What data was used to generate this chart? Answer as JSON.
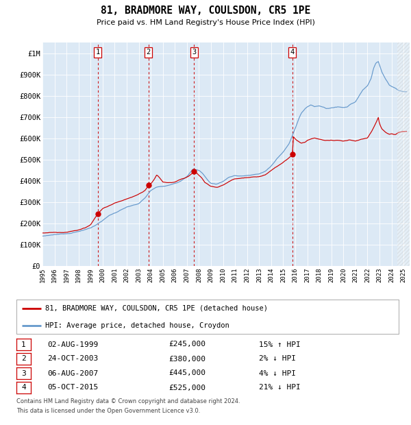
{
  "title": "81, BRADMORE WAY, COULSDON, CR5 1PE",
  "subtitle": "Price paid vs. HM Land Registry's House Price Index (HPI)",
  "footer1": "Contains HM Land Registry data © Crown copyright and database right 2024.",
  "footer2": "This data is licensed under the Open Government Licence v3.0.",
  "legend_red": "81, BRADMORE WAY, COULSDON, CR5 1PE (detached house)",
  "legend_blue": "HPI: Average price, detached house, Croydon",
  "transactions": [
    {
      "num": 1,
      "date": "02-AUG-1999",
      "price": 245000,
      "pct": "15%",
      "dir": "↑"
    },
    {
      "num": 2,
      "date": "24-OCT-2003",
      "price": 380000,
      "pct": "2%",
      "dir": "↓"
    },
    {
      "num": 3,
      "date": "06-AUG-2007",
      "price": 445000,
      "pct": "4%",
      "dir": "↓"
    },
    {
      "num": 4,
      "date": "05-OCT-2015",
      "price": 525000,
      "pct": "21%",
      "dir": "↓"
    }
  ],
  "transaction_dates_decimal": [
    1999.583,
    2003.806,
    2007.583,
    2015.756
  ],
  "transaction_prices": [
    245000,
    380000,
    445000,
    525000
  ],
  "xlim_start": 1995.0,
  "xlim_end": 2025.5,
  "ylim_min": 0,
  "ylim_max": 1050000,
  "yticks": [
    0,
    100000,
    200000,
    300000,
    400000,
    500000,
    600000,
    700000,
    800000,
    900000,
    1000000
  ],
  "ytick_labels": [
    "£0",
    "£100K",
    "£200K",
    "£300K",
    "£400K",
    "£500K",
    "£600K",
    "£700K",
    "£800K",
    "£900K",
    "£1M"
  ],
  "xticks": [
    1995,
    1996,
    1997,
    1998,
    1999,
    2000,
    2001,
    2002,
    2003,
    2004,
    2005,
    2006,
    2007,
    2008,
    2009,
    2010,
    2011,
    2012,
    2013,
    2014,
    2015,
    2016,
    2017,
    2018,
    2019,
    2020,
    2021,
    2022,
    2023,
    2024,
    2025
  ],
  "bg_color": "#dce9f5",
  "red_color": "#cc0000",
  "blue_color": "#6699cc",
  "grid_color": "#ffffff",
  "hpi_anchors": {
    "1995.0": 140000,
    "1996.0": 148000,
    "1997.0": 152000,
    "1998.0": 162000,
    "1999.0": 178000,
    "1999.5": 195000,
    "2000.0": 215000,
    "2000.5": 235000,
    "2001.0": 248000,
    "2001.5": 262000,
    "2002.0": 275000,
    "2002.5": 285000,
    "2003.0": 292000,
    "2003.5": 318000,
    "2004.0": 355000,
    "2004.5": 370000,
    "2005.0": 375000,
    "2005.5": 382000,
    "2006.0": 390000,
    "2006.5": 400000,
    "2007.0": 418000,
    "2007.5": 455000,
    "2008.0": 450000,
    "2008.3": 435000,
    "2008.7": 405000,
    "2009.0": 388000,
    "2009.5": 385000,
    "2010.0": 398000,
    "2010.5": 418000,
    "2011.0": 425000,
    "2011.5": 422000,
    "2012.0": 425000,
    "2012.5": 428000,
    "2013.0": 432000,
    "2013.5": 445000,
    "2014.0": 470000,
    "2014.5": 505000,
    "2015.0": 535000,
    "2015.5": 575000,
    "2016.0": 648000,
    "2016.3": 695000,
    "2016.5": 720000,
    "2016.8": 738000,
    "2017.0": 748000,
    "2017.3": 755000,
    "2017.6": 748000,
    "2018.0": 752000,
    "2018.3": 748000,
    "2018.6": 740000,
    "2019.0": 742000,
    "2019.5": 748000,
    "2020.0": 745000,
    "2020.3": 748000,
    "2020.6": 762000,
    "2021.0": 772000,
    "2021.3": 798000,
    "2021.6": 825000,
    "2022.0": 848000,
    "2022.3": 882000,
    "2022.5": 928000,
    "2022.7": 955000,
    "2022.9": 962000,
    "2023.0": 945000,
    "2023.2": 912000,
    "2023.5": 878000,
    "2023.8": 852000,
    "2024.0": 845000,
    "2024.3": 838000,
    "2024.6": 825000,
    "2025.0": 818000
  },
  "red_anchors": {
    "1995.0": 155000,
    "1996.0": 158000,
    "1997.0": 160000,
    "1998.0": 168000,
    "1998.5": 178000,
    "1999.0": 195000,
    "1999.583": 245000,
    "2000.0": 270000,
    "2000.5": 282000,
    "2001.0": 295000,
    "2001.5": 305000,
    "2002.0": 315000,
    "2002.5": 325000,
    "2003.0": 338000,
    "2003.5": 355000,
    "2003.806": 380000,
    "2004.0": 388000,
    "2004.3": 408000,
    "2004.5": 428000,
    "2004.7": 415000,
    "2005.0": 395000,
    "2005.5": 392000,
    "2006.0": 395000,
    "2006.5": 408000,
    "2007.0": 418000,
    "2007.4": 432000,
    "2007.583": 445000,
    "2007.8": 435000,
    "2008.2": 415000,
    "2008.5": 392000,
    "2009.0": 372000,
    "2009.5": 368000,
    "2010.0": 380000,
    "2010.5": 398000,
    "2011.0": 408000,
    "2011.5": 412000,
    "2012.0": 415000,
    "2012.5": 418000,
    "2013.0": 420000,
    "2013.5": 428000,
    "2014.0": 448000,
    "2014.5": 468000,
    "2015.0": 488000,
    "2015.5": 510000,
    "2015.756": 525000,
    "2015.85": 608000,
    "2016.0": 598000,
    "2016.2": 588000,
    "2016.5": 578000,
    "2016.8": 582000,
    "2017.0": 590000,
    "2017.3": 598000,
    "2017.6": 602000,
    "2018.0": 595000,
    "2018.5": 588000,
    "2019.0": 590000,
    "2019.5": 592000,
    "2020.0": 588000,
    "2020.5": 592000,
    "2021.0": 588000,
    "2021.5": 595000,
    "2022.0": 602000,
    "2022.3": 628000,
    "2022.5": 648000,
    "2022.7": 672000,
    "2022.9": 698000,
    "2023.0": 668000,
    "2023.2": 645000,
    "2023.5": 628000,
    "2023.8": 618000,
    "2024.0": 622000,
    "2024.3": 618000,
    "2024.6": 628000,
    "2025.0": 632000
  }
}
